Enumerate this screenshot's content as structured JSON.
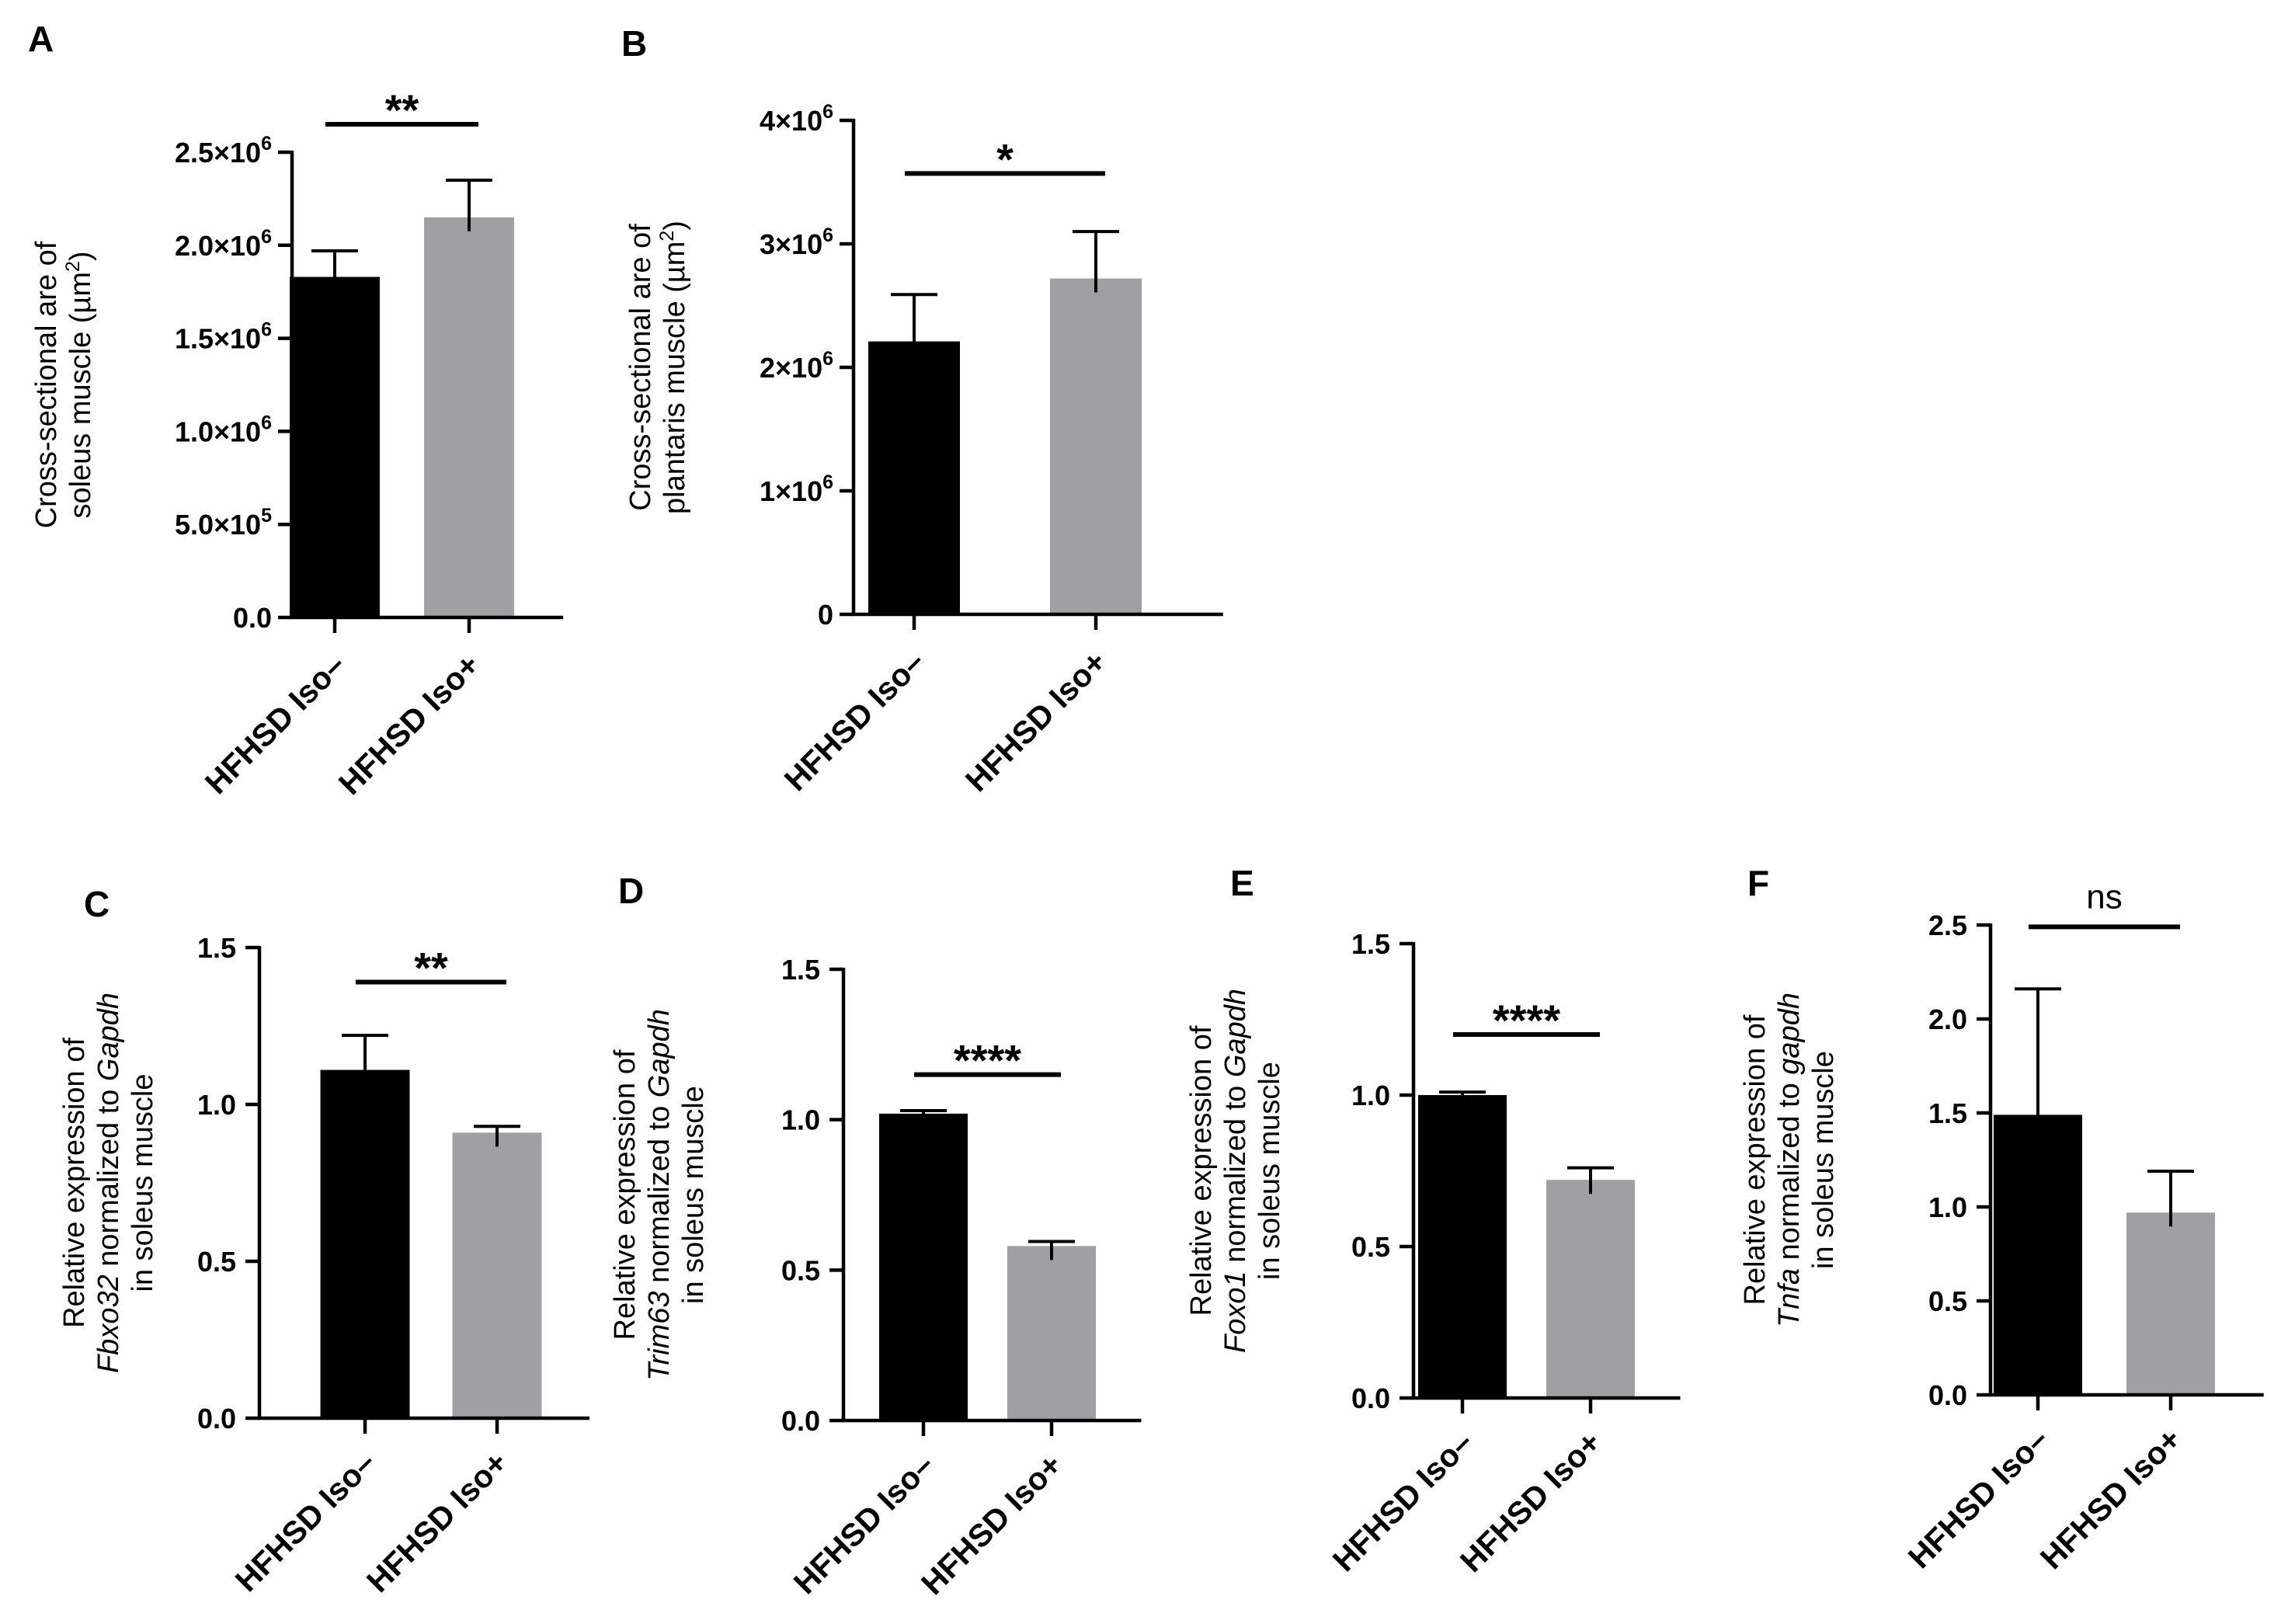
{
  "colors": {
    "black_bar": "#000000",
    "gray_bar": "#a0a0a4",
    "axis": "#000000"
  },
  "chart_data": [
    {
      "panel": "A",
      "type": "bar",
      "categories": [
        "HFHSD Iso–",
        "HFHSD Iso+"
      ],
      "values": [
        1830000,
        2150000
      ],
      "errors": [
        140000,
        200000
      ],
      "ylim": [
        0,
        2500000
      ],
      "ticks": [
        {
          "value": 0,
          "label": "0.0"
        },
        {
          "value": 500000,
          "label": "5.0×10",
          "exp": "5"
        },
        {
          "value": 1000000,
          "label": "1.0×10",
          "exp": "6"
        },
        {
          "value": 1500000,
          "label": "1.5×10",
          "exp": "6"
        },
        {
          "value": 2000000,
          "label": "2.0×10",
          "exp": "6"
        },
        {
          "value": 2500000,
          "label": "2.5×10",
          "exp": "6"
        }
      ],
      "ylabel": [
        [
          {
            "t": "Cross-sectional are of"
          }
        ],
        [
          {
            "t": "soleus muscle (µm"
          },
          {
            "t": "2",
            "sup": true
          },
          {
            "t": ")"
          }
        ]
      ],
      "significance": "**",
      "sig_y": 2650000
    },
    {
      "panel": "B",
      "type": "bar",
      "categories": [
        "HFHSD Iso–",
        "HFHSD Iso+"
      ],
      "values": [
        2210000,
        2720000
      ],
      "errors": [
        380000,
        380000
      ],
      "ylim": [
        0,
        4000000
      ],
      "ticks": [
        {
          "value": 0,
          "label": "0"
        },
        {
          "value": 1000000,
          "label": "1×10",
          "exp": "6"
        },
        {
          "value": 2000000,
          "label": "2×10",
          "exp": "6"
        },
        {
          "value": 3000000,
          "label": "3×10",
          "exp": "6"
        },
        {
          "value": 4000000,
          "label": "4×10",
          "exp": "6"
        }
      ],
      "ylabel": [
        [
          {
            "t": "Cross-sectional are of"
          }
        ],
        [
          {
            "t": "plantaris muscle (µm"
          },
          {
            "t": "2",
            "sup": true
          },
          {
            "t": ")"
          }
        ]
      ],
      "significance": "*",
      "sig_y": 3570000
    },
    {
      "panel": "C",
      "type": "bar",
      "categories": [
        "HFHSD Iso–",
        "HFHSD Iso+"
      ],
      "values": [
        1.11,
        0.91
      ],
      "errors": [
        0.11,
        0.02
      ],
      "ylim": [
        0,
        1.5
      ],
      "ticks": [
        {
          "value": 0,
          "label": "0.0"
        },
        {
          "value": 0.5,
          "label": "0.5"
        },
        {
          "value": 1.0,
          "label": "1.0"
        },
        {
          "value": 1.5,
          "label": "1.5"
        }
      ],
      "ylabel": [
        [
          {
            "t": "Relative expression of"
          }
        ],
        [
          {
            "t": "Fbxo32",
            "i": true
          },
          {
            "t": " normalized to "
          },
          {
            "t": "Gapdh",
            "i": true
          }
        ],
        [
          {
            "t": "in soleus muscle"
          }
        ]
      ],
      "significance": "**",
      "sig_y": 1.39
    },
    {
      "panel": "D",
      "type": "bar",
      "categories": [
        "HFHSD Iso–",
        "HFHSD Iso+"
      ],
      "values": [
        1.02,
        0.58
      ],
      "errors": [
        0.01,
        0.015
      ],
      "ylim": [
        0,
        1.5
      ],
      "ticks": [
        {
          "value": 0,
          "label": "0.0"
        },
        {
          "value": 0.5,
          "label": "0.5"
        },
        {
          "value": 1.0,
          "label": "1.0"
        },
        {
          "value": 1.5,
          "label": "1.5"
        }
      ],
      "ylabel": [
        [
          {
            "t": "Relative expression of"
          }
        ],
        [
          {
            "t": "Trim63",
            "i": true
          },
          {
            "t": " normalized to "
          },
          {
            "t": "Gapdh",
            "i": true
          }
        ],
        [
          {
            "t": "in soleus muscle"
          }
        ]
      ],
      "significance": "****",
      "sig_y": 1.15
    },
    {
      "panel": "E",
      "type": "bar",
      "categories": [
        "HFHSD Iso–",
        "HFHSD Iso+"
      ],
      "values": [
        1.0,
        0.72
      ],
      "errors": [
        0.01,
        0.04
      ],
      "ylim": [
        0,
        1.5
      ],
      "ticks": [
        {
          "value": 0,
          "label": "0.0"
        },
        {
          "value": 0.5,
          "label": "0.5"
        },
        {
          "value": 1.0,
          "label": "1.0"
        },
        {
          "value": 1.5,
          "label": "1.5"
        }
      ],
      "ylabel": [
        [
          {
            "t": "Relative expression of"
          }
        ],
        [
          {
            "t": "Foxo1",
            "i": true
          },
          {
            "t": " normalized to "
          },
          {
            "t": "Gapdh",
            "i": true
          }
        ],
        [
          {
            "t": "in soleus muscle"
          }
        ]
      ],
      "significance": "****",
      "sig_y": 1.2
    },
    {
      "panel": "F",
      "type": "bar",
      "categories": [
        "HFHSD Iso–",
        "HFHSD Iso+"
      ],
      "values": [
        1.49,
        0.97
      ],
      "errors": [
        0.67,
        0.22
      ],
      "ylim": [
        0,
        2.5
      ],
      "ticks": [
        {
          "value": 0,
          "label": "0.0"
        },
        {
          "value": 0.5,
          "label": "0.5"
        },
        {
          "value": 1.0,
          "label": "1.0"
        },
        {
          "value": 1.5,
          "label": "1.5"
        },
        {
          "value": 2.0,
          "label": "2.0"
        },
        {
          "value": 2.5,
          "label": "2.5"
        }
      ],
      "ylabel": [
        [
          {
            "t": "Relative expression of"
          }
        ],
        [
          {
            "t": "Tnfa",
            "i": true
          },
          {
            "t": " normalized to "
          },
          {
            "t": "gapdh",
            "i": true
          }
        ],
        [
          {
            "t": "in soleus muscle"
          }
        ]
      ],
      "significance": "ns",
      "sig_y": 2.49
    }
  ]
}
